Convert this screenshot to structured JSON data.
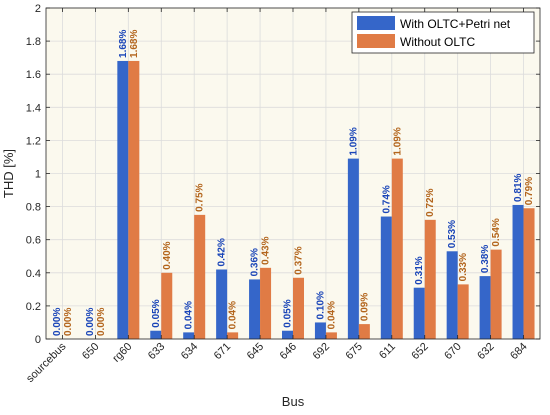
{
  "chart_data": {
    "type": "bar",
    "categories": [
      "sourcebus",
      "650",
      "rg60",
      "633",
      "634",
      "671",
      "645",
      "646",
      "692",
      "675",
      "611",
      "652",
      "670",
      "632",
      "684"
    ],
    "series": [
      {
        "name": "With OLTC+Petri net",
        "color": "#3566c9",
        "values": [
          0.0,
          0.0,
          1.68,
          0.05,
          0.04,
          0.42,
          0.36,
          0.05,
          0.1,
          1.09,
          0.74,
          0.31,
          0.53,
          0.38,
          0.81
        ],
        "labels": [
          "0.00%",
          "0.00%",
          "1.68%",
          "0.05%",
          "0.04%",
          "0.42%",
          "0.36%",
          "0.05%",
          "0.10%",
          "1.09%",
          "0.74%",
          "0.31%",
          "0.53%",
          "0.38%",
          "0.81%"
        ]
      },
      {
        "name": "Without OLTC",
        "color": "#e07b45",
        "values": [
          0.0,
          0.0,
          1.68,
          0.4,
          0.75,
          0.04,
          0.43,
          0.37,
          0.04,
          0.09,
          1.09,
          0.72,
          0.33,
          0.54,
          0.79
        ],
        "labels": [
          "0.00%",
          "0.00%",
          "1.68%",
          "0.40%",
          "0.75%",
          "0.04%",
          "0.43%",
          "0.37%",
          "0.04%",
          "0.09%",
          "1.09%",
          "0.72%",
          "0.33%",
          "0.54%",
          "0.79%"
        ]
      }
    ],
    "xlabel": "Bus",
    "ylabel": "THD [%]",
    "ylim": [
      0,
      2
    ],
    "yticks": [
      0,
      0.2,
      0.4,
      0.6,
      0.8,
      1,
      1.2,
      1.4,
      1.6,
      1.8,
      2
    ],
    "ytick_labels": [
      "0",
      "0.2",
      "0.4",
      "0.6",
      "0.8",
      "1",
      "1.2",
      "1.4",
      "1.6",
      "1.8",
      "2"
    ],
    "grid": true,
    "legend_position": "top-right",
    "label_colors": [
      "#1a45b8",
      "#b3651d"
    ],
    "plot_background": "#fbf9ee"
  }
}
